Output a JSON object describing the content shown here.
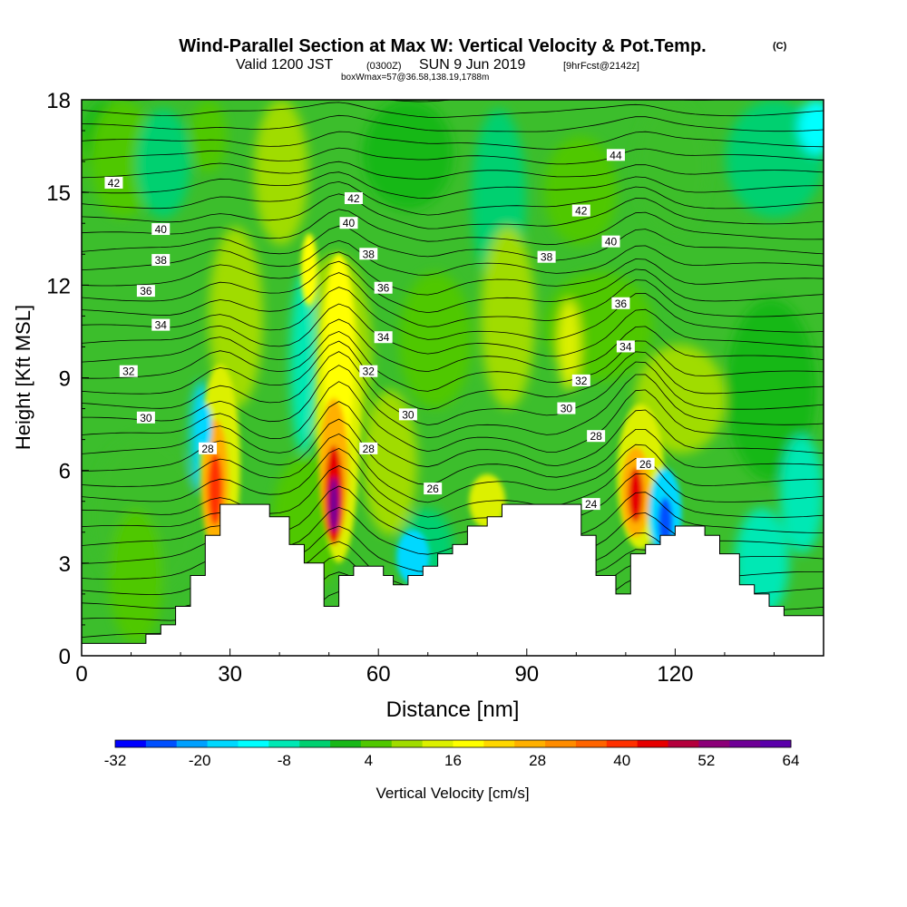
{
  "header": {
    "title": "Wind-Parallel Section at Max W: Vertical Velocity & Pot.Temp.",
    "title_mark": "(C)",
    "valid": "Valid 1200 JST",
    "utc": "(0300Z)",
    "date": "SUN 9 Jun 2019",
    "fcst": "[9hrFcst@2142z]",
    "boxw": "boxWmax=57@36.58,138.19,1788m"
  },
  "chart_data": {
    "type": "heatmap",
    "xlabel": "Distance [nm]",
    "ylabel": "Height [Kft MSL]",
    "xlim": [
      0,
      150
    ],
    "ylim": [
      0,
      18
    ],
    "xticks": [
      0,
      30,
      60,
      90,
      120
    ],
    "yticks": [
      0,
      3,
      6,
      9,
      12,
      15,
      18
    ],
    "colorbar": {
      "label": "Vertical Velocity [cm/s]",
      "tick_values": [
        -32,
        -20,
        -8,
        4,
        16,
        28,
        40,
        52,
        64
      ],
      "colors": [
        "#0000ff",
        "#0050ff",
        "#00a0ff",
        "#00d8ff",
        "#00ffff",
        "#00e8b4",
        "#00d070",
        "#18b818",
        "#50c800",
        "#a0dc00",
        "#dcf000",
        "#ffff00",
        "#ffd700",
        "#ffb000",
        "#ff8c00",
        "#ff6400",
        "#ff3000",
        "#e60000",
        "#b4003c",
        "#8c0078",
        "#6e0096",
        "#5a00aa"
      ]
    },
    "terrain_kft": [
      [
        0,
        0.4
      ],
      [
        13,
        0.4
      ],
      [
        13,
        0.7
      ],
      [
        16,
        0.7
      ],
      [
        16,
        1.0
      ],
      [
        19,
        1.0
      ],
      [
        19,
        1.6
      ],
      [
        22,
        1.6
      ],
      [
        22,
        2.6
      ],
      [
        25,
        2.6
      ],
      [
        25,
        3.9
      ],
      [
        28,
        3.9
      ],
      [
        28,
        4.9
      ],
      [
        38,
        4.9
      ],
      [
        38,
        4.5
      ],
      [
        42,
        4.5
      ],
      [
        42,
        3.6
      ],
      [
        45,
        3.6
      ],
      [
        45,
        3.0
      ],
      [
        49,
        3.0
      ],
      [
        49,
        1.6
      ],
      [
        52,
        1.6
      ],
      [
        52,
        2.6
      ],
      [
        55,
        2.6
      ],
      [
        55,
        2.9
      ],
      [
        61,
        2.9
      ],
      [
        61,
        2.6
      ],
      [
        63,
        2.6
      ],
      [
        63,
        2.3
      ],
      [
        66,
        2.3
      ],
      [
        66,
        2.6
      ],
      [
        69,
        2.6
      ],
      [
        69,
        2.9
      ],
      [
        72,
        2.9
      ],
      [
        72,
        3.3
      ],
      [
        75,
        3.3
      ],
      [
        75,
        3.6
      ],
      [
        78,
        3.6
      ],
      [
        78,
        4.2
      ],
      [
        82,
        4.2
      ],
      [
        82,
        4.5
      ],
      [
        85,
        4.5
      ],
      [
        85,
        4.9
      ],
      [
        101,
        4.9
      ],
      [
        101,
        3.9
      ],
      [
        104,
        3.9
      ],
      [
        104,
        2.6
      ],
      [
        108,
        2.6
      ],
      [
        108,
        2.0
      ],
      [
        111,
        2.0
      ],
      [
        111,
        3.3
      ],
      [
        114,
        3.3
      ],
      [
        114,
        3.6
      ],
      [
        117,
        3.6
      ],
      [
        117,
        3.9
      ],
      [
        120,
        3.9
      ],
      [
        120,
        4.2
      ],
      [
        126,
        4.2
      ],
      [
        126,
        3.9
      ],
      [
        129,
        3.9
      ],
      [
        129,
        3.3
      ],
      [
        133,
        3.3
      ],
      [
        133,
        2.3
      ],
      [
        136,
        2.3
      ],
      [
        136,
        2.0
      ],
      [
        139,
        2.0
      ],
      [
        139,
        1.6
      ],
      [
        142,
        1.6
      ],
      [
        142,
        1.3
      ],
      [
        146,
        1.3
      ],
      [
        146,
        1.3
      ],
      [
        150,
        1.3
      ]
    ],
    "theta_labels": [
      {
        "text": "42",
        "x": 6.5,
        "y": 15.3
      },
      {
        "text": "40",
        "x": 16,
        "y": 13.8
      },
      {
        "text": "38",
        "x": 16,
        "y": 12.8
      },
      {
        "text": "36",
        "x": 13,
        "y": 11.8
      },
      {
        "text": "34",
        "x": 16,
        "y": 10.7
      },
      {
        "text": "32",
        "x": 9.5,
        "y": 9.2
      },
      {
        "text": "30",
        "x": 13,
        "y": 7.7
      },
      {
        "text": "28",
        "x": 25.5,
        "y": 6.7
      },
      {
        "text": "42",
        "x": 55,
        "y": 14.8
      },
      {
        "text": "40",
        "x": 54,
        "y": 14.0
      },
      {
        "text": "38",
        "x": 58,
        "y": 13.0
      },
      {
        "text": "36",
        "x": 61,
        "y": 11.9
      },
      {
        "text": "34",
        "x": 61,
        "y": 10.3
      },
      {
        "text": "32",
        "x": 58,
        "y": 9.2
      },
      {
        "text": "30",
        "x": 66,
        "y": 7.8
      },
      {
        "text": "28",
        "x": 58,
        "y": 6.7
      },
      {
        "text": "26",
        "x": 71,
        "y": 5.4
      },
      {
        "text": "44",
        "x": 108,
        "y": 16.2
      },
      {
        "text": "42",
        "x": 101,
        "y": 14.4
      },
      {
        "text": "40",
        "x": 107,
        "y": 13.4
      },
      {
        "text": "38",
        "x": 94,
        "y": 12.9
      },
      {
        "text": "36",
        "x": 109,
        "y": 11.4
      },
      {
        "text": "34",
        "x": 110,
        "y": 10.0
      },
      {
        "text": "32",
        "x": 101,
        "y": 8.9
      },
      {
        "text": "30",
        "x": 98,
        "y": 8.0
      },
      {
        "text": "28",
        "x": 104,
        "y": 7.1
      },
      {
        "text": "26",
        "x": 114,
        "y": 6.2
      },
      {
        "text": "24",
        "x": 103,
        "y": 4.9
      }
    ]
  }
}
